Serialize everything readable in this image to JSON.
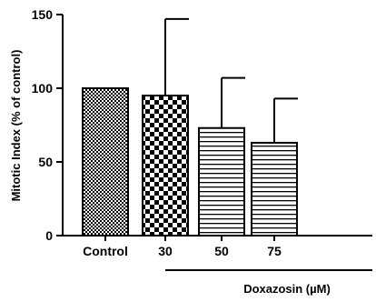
{
  "chart_data": {
    "type": "bar",
    "ylabel": "Mitotic Index (% of control)",
    "ylim": [
      0,
      150
    ],
    "yticks": [
      0,
      50,
      100,
      150
    ],
    "categories": [
      "Control",
      "30",
      "50",
      "75"
    ],
    "values": [
      100,
      95,
      73,
      63
    ],
    "errors": [
      0,
      52,
      34,
      30
    ],
    "patterns": [
      "fine-check",
      "coarse-check",
      "horizontal-lines",
      "horizontal-lines"
    ],
    "group_label": "Doxazosin (µM)",
    "grid": false
  }
}
